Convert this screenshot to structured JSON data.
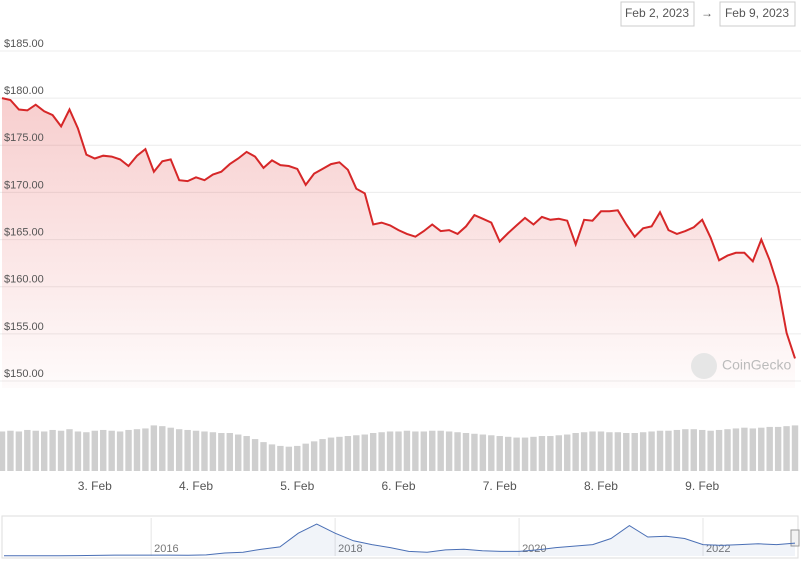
{
  "chart_data": {
    "type": "line",
    "date_range": {
      "from": "Feb 2, 2023",
      "separator": "→",
      "to": "Feb 9, 2023"
    },
    "watermark": "CoinGecko",
    "categories": [
      null,
      null,
      null,
      null,
      null,
      null,
      null,
      null,
      null,
      null,
      null,
      "3. Feb",
      null,
      null,
      null,
      null,
      null,
      null,
      null,
      null,
      null,
      null,
      null,
      "4. Feb",
      null,
      null,
      null,
      null,
      null,
      null,
      null,
      null,
      null,
      null,
      null,
      "5. Feb",
      null,
      null,
      null,
      null,
      null,
      null,
      null,
      null,
      null,
      null,
      null,
      "6. Feb",
      null,
      null,
      null,
      null,
      null,
      null,
      null,
      null,
      null,
      null,
      null,
      "7. Feb",
      null,
      null,
      null,
      null,
      null,
      null,
      null,
      null,
      null,
      null,
      null,
      "8. Feb",
      null,
      null,
      null,
      null,
      null,
      null,
      null,
      null,
      null,
      null,
      null,
      "9. Feb",
      null,
      null,
      null,
      null,
      null,
      null,
      null,
      null,
      null,
      null,
      null
    ],
    "series": [
      {
        "color": "#d62728",
        "values": [
          180.0,
          179.8,
          178.8,
          178.7,
          179.3,
          178.6,
          178.2,
          177.0,
          178.8,
          176.8,
          174.0,
          173.6,
          173.9,
          173.8,
          173.5,
          172.8,
          173.9,
          174.6,
          172.2,
          173.3,
          173.5,
          171.3,
          171.2,
          171.6,
          171.3,
          171.9,
          172.2,
          173.0,
          173.6,
          174.3,
          173.8,
          172.6,
          173.4,
          172.9,
          172.8,
          172.5,
          170.8,
          172.0,
          172.5,
          173.0,
          173.2,
          172.4,
          170.4,
          169.9,
          166.6,
          166.8,
          166.5,
          166.0,
          165.6,
          165.3,
          165.9,
          166.6,
          165.9,
          166.0,
          165.6,
          166.4,
          167.6,
          167.2,
          166.8,
          164.8,
          165.7,
          166.5,
          167.3,
          166.6,
          167.4,
          167.1,
          167.2,
          167.0,
          164.5,
          167.1,
          167.0,
          168.0,
          168.0,
          168.1,
          166.6,
          165.3,
          166.2,
          166.4,
          167.9,
          166.0,
          165.6,
          165.9,
          166.3,
          167.1,
          165.2,
          162.8,
          163.3,
          163.6,
          163.6,
          162.7,
          165.0,
          162.8,
          160.0,
          155.1,
          152.4
        ]
      }
    ],
    "ylim": [
      150,
      185
    ],
    "yticks": [
      {
        "value": 150,
        "label": "$150.00"
      },
      {
        "value": 155,
        "label": "$155.00"
      },
      {
        "value": 160,
        "label": "$160.00"
      },
      {
        "value": 165,
        "label": "$165.00"
      },
      {
        "value": 170,
        "label": "$170.00"
      },
      {
        "value": 175,
        "label": "$175.00"
      },
      {
        "value": 180,
        "label": "$180.00"
      },
      {
        "value": 185,
        "label": "$185.00"
      }
    ],
    "grid": true,
    "volume": {
      "color": "#cfcfcf",
      "ylim": [
        0,
        100
      ],
      "values": [
        52,
        53,
        52,
        54,
        53,
        52,
        54,
        53,
        55,
        52,
        51,
        53,
        54,
        53,
        52,
        54,
        55,
        56,
        60,
        59,
        57,
        55,
        54,
        53,
        52,
        51,
        50,
        50,
        48,
        46,
        42,
        38,
        35,
        33,
        32,
        33,
        36,
        39,
        42,
        44,
        45,
        46,
        47,
        48,
        50,
        51,
        52,
        52,
        53,
        52,
        52,
        53,
        53,
        52,
        51,
        50,
        49,
        48,
        47,
        46,
        45,
        44,
        44,
        45,
        46,
        46,
        47,
        48,
        50,
        51,
        52,
        52,
        51,
        51,
        50,
        50,
        51,
        52,
        53,
        53,
        54,
        55,
        55,
        54,
        53,
        54,
        55,
        56,
        57,
        56,
        57,
        58,
        58,
        59,
        60
      ]
    },
    "navigator": {
      "color": "#4a6fb5",
      "ylim": [
        0,
        500
      ],
      "categories": [
        null,
        null,
        null,
        null,
        null,
        null,
        null,
        null,
        "2016",
        null,
        null,
        null,
        null,
        null,
        null,
        null,
        null,
        null,
        "2018",
        null,
        null,
        null,
        null,
        null,
        null,
        null,
        null,
        null,
        "2020",
        null,
        null,
        null,
        null,
        null,
        null,
        null,
        null,
        null,
        "2022",
        null,
        null,
        null,
        null,
        null
      ],
      "values": [
        2,
        3,
        3,
        4,
        5,
        8,
        12,
        12,
        12,
        12,
        10,
        15,
        40,
        50,
        90,
        120,
        300,
        420,
        300,
        200,
        150,
        110,
        60,
        50,
        80,
        90,
        70,
        60,
        60,
        80,
        110,
        130,
        150,
        230,
        400,
        250,
        260,
        230,
        150,
        140,
        150,
        160,
        150,
        170
      ]
    }
  }
}
